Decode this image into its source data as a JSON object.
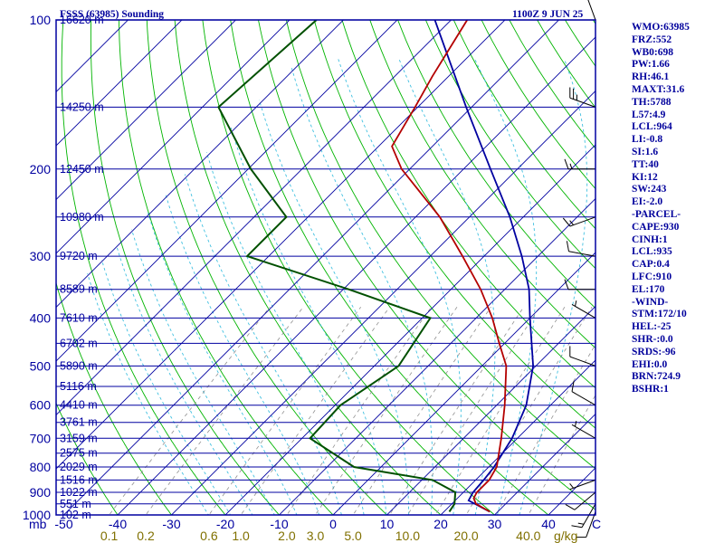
{
  "header": {
    "title": "FSSS (63985) Sounding",
    "valid_time": "1100Z  9 JUN 25"
  },
  "colors": {
    "frame": "#0000a0",
    "isobar": "#0000a0",
    "isotherm": "#0000a0",
    "dry_adiabat": "#00b400",
    "moist_adiabat": "#40c0e0",
    "mixing_ratio": "#909090",
    "temperature": "#b40000",
    "dewpoint": "#005000",
    "parcel": "#0000a0",
    "axis_text": "#0000a0",
    "mixing_text": "#807000",
    "stats_text": "#00009c"
  },
  "chart_data": {
    "type": "skew-t log-p sounding",
    "pressure_axis": {
      "unit_label": "mb",
      "range": [
        1000,
        100
      ],
      "scale": "log",
      "tick_labels": [
        "100",
        "200",
        "300",
        "400",
        "500",
        "600",
        "700",
        "800",
        "900",
        "1000"
      ]
    },
    "temperature_axis": {
      "unit_label": "C",
      "tick_labels": [
        "-50",
        "-40",
        "-30",
        "-20",
        "-10",
        "0",
        "10",
        "20",
        "30",
        "40"
      ],
      "skew": "45 degrees"
    },
    "mixing_ratio_axis": {
      "unit_label": "g/kg",
      "tick_labels": [
        "0.1",
        "0.2",
        "0.6",
        "1.0",
        "2.0",
        "3.0",
        "5.0",
        "10.0",
        "20.0",
        "40.0"
      ]
    },
    "height_levels": [
      {
        "p": 100,
        "label": "16620 m"
      },
      {
        "p": 150,
        "label": "14250 m"
      },
      {
        "p": 200,
        "label": "12450 m"
      },
      {
        "p": 250,
        "label": "10980 m"
      },
      {
        "p": 300,
        "label": "9720 m"
      },
      {
        "p": 350,
        "label": "8589 m"
      },
      {
        "p": 400,
        "label": "7610 m"
      },
      {
        "p": 450,
        "label": "6702 m"
      },
      {
        "p": 500,
        "label": "5890 m"
      },
      {
        "p": 550,
        "label": "5116 m"
      },
      {
        "p": 600,
        "label": "4410 m"
      },
      {
        "p": 650,
        "label": "3761 m"
      },
      {
        "p": 700,
        "label": "3159 m"
      },
      {
        "p": 750,
        "label": "2575 m"
      },
      {
        "p": 800,
        "label": "2029 m"
      },
      {
        "p": 850,
        "label": "1516 m"
      },
      {
        "p": 900,
        "label": "1022 m"
      },
      {
        "p": 950,
        "label": "551 m"
      },
      {
        "p": 1000,
        "label": "102 m"
      }
    ],
    "temperature_profile": [
      {
        "p": 985,
        "t": 28.5
      },
      {
        "p": 950,
        "t": 24.5
      },
      {
        "p": 925,
        "t": 23.0
      },
      {
        "p": 900,
        "t": 22.5
      },
      {
        "p": 850,
        "t": 22.5
      },
      {
        "p": 800,
        "t": 21.5
      },
      {
        "p": 700,
        "t": 17.0
      },
      {
        "p": 600,
        "t": 11.5
      },
      {
        "p": 500,
        "t": 4.5
      },
      {
        "p": 450,
        "t": -1.0
      },
      {
        "p": 400,
        "t": -7.0
      },
      {
        "p": 350,
        "t": -14.5
      },
      {
        "p": 300,
        "t": -24.0
      },
      {
        "p": 250,
        "t": -35.5
      },
      {
        "p": 200,
        "t": -51.5
      },
      {
        "p": 180,
        "t": -57.5
      },
      {
        "p": 150,
        "t": -60.5
      },
      {
        "p": 130,
        "t": -63.0
      },
      {
        "p": 100,
        "t": -67.0
      }
    ],
    "dewpoint_profile": [
      {
        "p": 985,
        "t": 21.0
      },
      {
        "p": 950,
        "t": 20.5
      },
      {
        "p": 900,
        "t": 18.5
      },
      {
        "p": 850,
        "t": 12.0
      },
      {
        "p": 800,
        "t": -5.0
      },
      {
        "p": 700,
        "t": -18.5
      },
      {
        "p": 600,
        "t": -19.0
      },
      {
        "p": 500,
        "t": -15.5
      },
      {
        "p": 400,
        "t": -18.5
      },
      {
        "p": 350,
        "t": -39.0
      },
      {
        "p": 300,
        "t": -64.0
      },
      {
        "p": 250,
        "t": -64.0
      },
      {
        "p": 200,
        "t": -79.5
      },
      {
        "p": 150,
        "t": -97.0
      },
      {
        "p": 100,
        "t": -95.0
      }
    ],
    "parcel_profile": [
      {
        "p": 985,
        "t": 28.5
      },
      {
        "p": 935,
        "t": 22.5
      },
      {
        "p": 900,
        "t": 21.8
      },
      {
        "p": 850,
        "t": 21.5
      },
      {
        "p": 800,
        "t": 21.0
      },
      {
        "p": 700,
        "t": 19.0
      },
      {
        "p": 600,
        "t": 15.5
      },
      {
        "p": 500,
        "t": 9.5
      },
      {
        "p": 400,
        "t": 0.0
      },
      {
        "p": 350,
        "t": -5.5
      },
      {
        "p": 300,
        "t": -13.0
      },
      {
        "p": 250,
        "t": -22.5
      },
      {
        "p": 200,
        "t": -35.0
      },
      {
        "p": 150,
        "t": -51.0
      },
      {
        "p": 100,
        "t": -73.0
      }
    ],
    "wind_barbs": [
      {
        "p": 985,
        "dir": 200,
        "kt": 10
      },
      {
        "p": 950,
        "dir": 210,
        "kt": 15
      },
      {
        "p": 900,
        "dir": 230,
        "kt": 10
      },
      {
        "p": 850,
        "dir": 250,
        "kt": 5
      },
      {
        "p": 700,
        "dir": 300,
        "kt": 5
      },
      {
        "p": 600,
        "dir": 300,
        "kt": 10
      },
      {
        "p": 500,
        "dir": 290,
        "kt": 10
      },
      {
        "p": 400,
        "dir": 300,
        "kt": 5
      },
      {
        "p": 350,
        "dir": 270,
        "kt": 10
      },
      {
        "p": 300,
        "dir": 280,
        "kt": 10
      },
      {
        "p": 250,
        "dir": 250,
        "kt": 15
      },
      {
        "p": 200,
        "dir": 270,
        "kt": 15
      },
      {
        "p": 150,
        "dir": 290,
        "kt": 25
      },
      {
        "p": 100,
        "dir": 340,
        "kt": 15
      }
    ]
  },
  "stats": [
    "WMO:63985",
    "FRZ:552",
    "WB0:698",
    "PW:1.66",
    "RH:46.1",
    "MAXT:31.6",
    "TH:5788",
    "L57:4.9",
    "LCL:964",
    "LI:-0.8",
    "SI:1.6",
    "TT:40",
    "KI:12",
    "SW:243",
    "EI:-2.0",
    "-PARCEL-",
    "CAPE:930",
    "CINH:1",
    "LCL:935",
    "CAP:0.4",
    "LFC:910",
    "EL:170",
    "-WIND-",
    "STM:172/10",
    "HEL:-25",
    "SHR-:0.0",
    "SRDS:-96",
    "EHI:0.0",
    "BRN:724.9",
    "BSHR:1"
  ]
}
